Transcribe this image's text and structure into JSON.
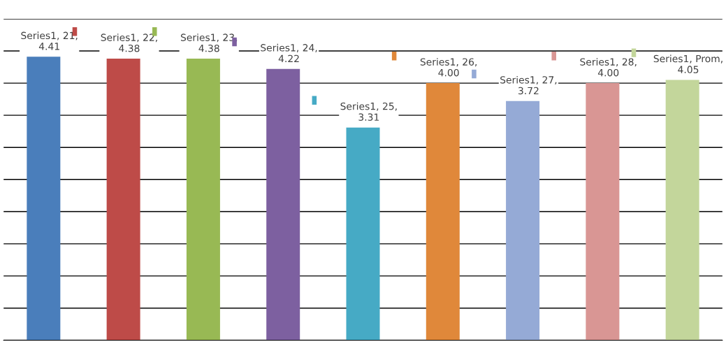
{
  "chart_data": {
    "type": "bar",
    "categories": [
      null,
      null,
      null,
      null,
      null,
      null,
      null,
      null,
      null
    ],
    "series": [
      {
        "values": [
          4.41,
          4.38,
          4.38,
          4.22,
          3.31,
          4.0,
          3.72,
          4.0,
          4.05
        ],
        "colors": [
          "#4a7ebb",
          "#be4b48",
          "#98b954",
          "#7d60a0",
          "#46aac5",
          "#e0883a",
          "#95aad6",
          "#d99694",
          "#c3d69b"
        ],
        "value_labels": [
          "Series1, 21,\n4.41",
          "Series1, 22,\n4.38",
          "Series1, 23,\n4.38",
          "Series1, 24,\n4.22",
          "Series1, 25,\n3.31",
          "Series1, 26,\n4.00",
          "Series1, 27,\n3.72",
          "Series1, 28,\n4.00",
          "Series1, Prom,\n4.05"
        ]
      }
    ],
    "ylim": [
      0,
      5
    ],
    "yticks": [
      {
        "value": 0,
        "label": null
      },
      {
        "value": 0.5,
        "label": null
      },
      {
        "value": 1,
        "label": null
      },
      {
        "value": 1.5,
        "label": null
      },
      {
        "value": 2,
        "label": null
      },
      {
        "value": 2.5,
        "label": null
      },
      {
        "value": 3,
        "label": null
      },
      {
        "value": 3.5,
        "label": null
      },
      {
        "value": 4,
        "label": null
      },
      {
        "value": 4.5,
        "label": null
      },
      {
        "value": 5,
        "label": null
      }
    ],
    "grid": "y"
  }
}
